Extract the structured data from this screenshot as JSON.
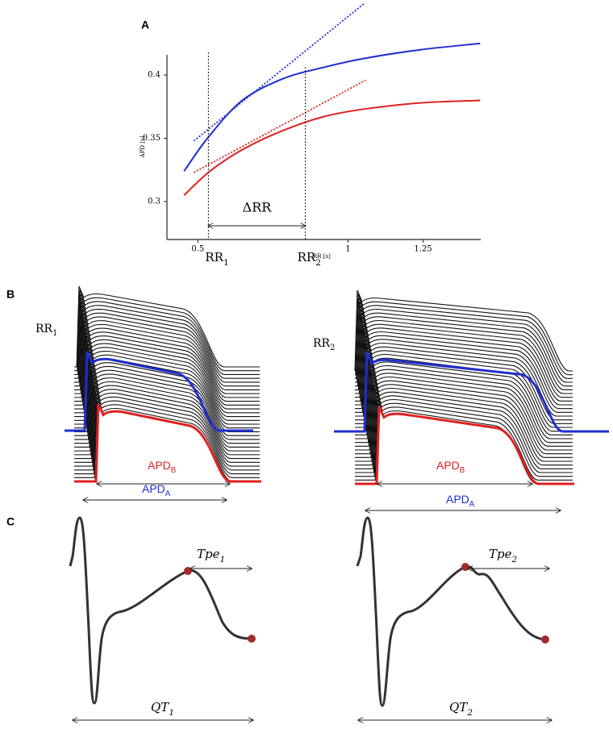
{
  "panel_labels": [
    "A",
    "B",
    "C"
  ],
  "chart_data": {
    "type": "line",
    "xlabel": "RR [s]",
    "ylabel": "APD [s]",
    "xlim": [
      0.397,
      1.442
    ],
    "ylim": [
      0.27,
      0.416
    ],
    "xticks": [
      0.5,
      1,
      1.25
    ],
    "yticks": [
      0.3,
      0.35,
      0.4
    ],
    "series": [
      {
        "color": "#1f2fd0",
        "style": "solid",
        "x": [
          0.454,
          0.535,
          0.648,
          0.782,
          0.917,
          1.05,
          1.24,
          1.44
        ],
        "values": [
          0.324,
          0.351,
          0.38,
          0.397,
          0.406,
          0.413,
          0.42,
          0.425
        ]
      },
      {
        "color": "#e02020",
        "style": "solid",
        "x": [
          0.454,
          0.54,
          0.648,
          0.782,
          0.917,
          1.05,
          1.24,
          1.44
        ],
        "values": [
          0.305,
          0.324,
          0.341,
          0.356,
          0.367,
          0.373,
          0.378,
          0.38
        ]
      },
      {
        "color": "#1f2fd0",
        "style": "dotted",
        "x": [
          0.487,
          1.056
        ],
        "values": [
          0.348,
          0.457
        ]
      },
      {
        "color": "#e02020",
        "style": "dotted",
        "x": [
          0.487,
          1.059
        ],
        "values": [
          0.323,
          0.396
        ]
      }
    ],
    "markers": [
      {
        "x": 0.535,
        "label": {
          "text": "RR",
          "sub": "1"
        }
      },
      {
        "x": 0.858,
        "label": {
          "text": "RR",
          "sub": "2"
        }
      }
    ],
    "interval_label": "ΔRR"
  },
  "panel_b": {
    "left": {
      "rr": {
        "text": "RR",
        "sub": "1"
      },
      "apd_b": {
        "text": "APD",
        "sub": "B"
      },
      "apd_a": {
        "text": "APD",
        "sub": "A"
      }
    },
    "right": {
      "rr": {
        "text": "RR",
        "sub": "2"
      },
      "apd_b": {
        "text": "APD",
        "sub": "B"
      },
      "apd_a": {
        "text": "APD",
        "sub": "A"
      }
    }
  },
  "panel_c": {
    "left": {
      "tpe": {
        "text": "Tpe",
        "sub": "1"
      },
      "qt": {
        "text": "QT",
        "sub": "1"
      }
    },
    "right": {
      "tpe": {
        "text": "Tpe",
        "sub": "2"
      },
      "qt": {
        "text": "QT",
        "sub": "2"
      }
    }
  }
}
